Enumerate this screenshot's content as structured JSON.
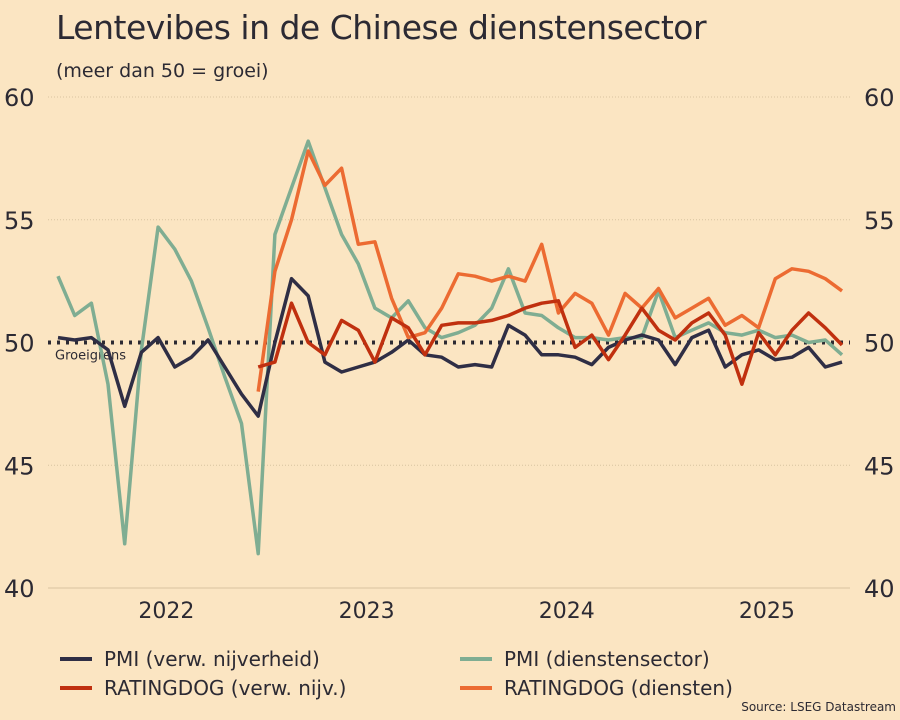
{
  "title": "Lentevibes in de Chinese dienstensector",
  "subtitle": "(meer dan 50 = groei)",
  "source": "Source: LSEG Datastream",
  "colors": {
    "background": "#fbe5c2",
    "text": "#2c2a33"
  },
  "chart_data": {
    "type": "line",
    "title": "Lentevibes in de Chinese dienstensector",
    "subtitle": "(meer dan 50 = groei)",
    "ylim": [
      40,
      60
    ],
    "yticks": [
      "40",
      "45",
      "50",
      "55",
      "60"
    ],
    "xticks": [
      {
        "label": "2022",
        "at": 6.5
      },
      {
        "label": "2023",
        "at": 18.5
      },
      {
        "label": "2024",
        "at": 30.5
      },
      {
        "label": "2025",
        "at": 42.5
      }
    ],
    "reference_line": {
      "value": 50,
      "label": "Groeigrens"
    },
    "legend_position": "bottom",
    "series": [
      {
        "name": "PMI (verw. nijverheid)",
        "color": "#2f2e45",
        "start": 0,
        "values": [
          50.2,
          50.1,
          50.2,
          49.7,
          47.4,
          49.6,
          50.2,
          49.0,
          49.4,
          50.1,
          49.0,
          47.9,
          47.0,
          50.0,
          52.6,
          51.9,
          49.2,
          48.8,
          49.0,
          49.2,
          49.6,
          50.1,
          49.5,
          49.4,
          49.0,
          49.1,
          49.0,
          50.7,
          50.3,
          49.5,
          49.5,
          49.4,
          49.1,
          49.8,
          50.1,
          50.3,
          50.1,
          49.1,
          50.2,
          50.5,
          49.0,
          49.5,
          49.7,
          49.3,
          49.4,
          49.8,
          49.0,
          49.2
        ]
      },
      {
        "name": "PMI (dienstensector)",
        "color": "#7fad92",
        "start": 0,
        "values": [
          52.7,
          51.1,
          51.6,
          48.3,
          41.8,
          49.7,
          54.7,
          53.8,
          52.5,
          50.6,
          48.6,
          46.7,
          41.4,
          54.4,
          56.3,
          58.2,
          56.3,
          54.4,
          53.2,
          51.4,
          51.0,
          51.7,
          50.6,
          50.2,
          50.4,
          50.7,
          51.4,
          53.0,
          51.2,
          51.1,
          50.6,
          50.2,
          50.2,
          50.1,
          50.2,
          50.2,
          52.1,
          50.2,
          50.5,
          50.8,
          50.4,
          50.3,
          50.5,
          50.2,
          50.3,
          50.0,
          50.1,
          49.5
        ]
      },
      {
        "name": "RATINGDOG (verw. nijv.)",
        "color": "#c0300f",
        "start": 12,
        "values": [
          49.0,
          49.2,
          51.6,
          50.0,
          49.5,
          50.9,
          50.5,
          49.2,
          51.0,
          50.6,
          49.5,
          50.7,
          50.8,
          50.8,
          50.9,
          51.1,
          51.4,
          51.6,
          51.7,
          49.8,
          50.3,
          49.3,
          50.3,
          51.4,
          50.5,
          50.1,
          50.8,
          51.2,
          50.3,
          48.3,
          50.4,
          49.5,
          50.5,
          51.2,
          50.6,
          49.9
        ]
      },
      {
        "name": "RATINGDOG (diensten)",
        "color": "#ec6b32",
        "start": 12,
        "values": [
          48.0,
          52.9,
          55.0,
          57.8,
          56.4,
          57.1,
          54.0,
          54.1,
          51.8,
          50.2,
          50.4,
          51.4,
          52.8,
          52.7,
          52.5,
          52.7,
          52.5,
          54.0,
          51.2,
          52.0,
          51.6,
          50.3,
          52.0,
          51.4,
          52.2,
          51.0,
          51.4,
          51.8,
          50.7,
          51.1,
          50.6,
          52.6,
          53.0,
          52.9,
          52.6,
          52.1
        ]
      }
    ]
  }
}
